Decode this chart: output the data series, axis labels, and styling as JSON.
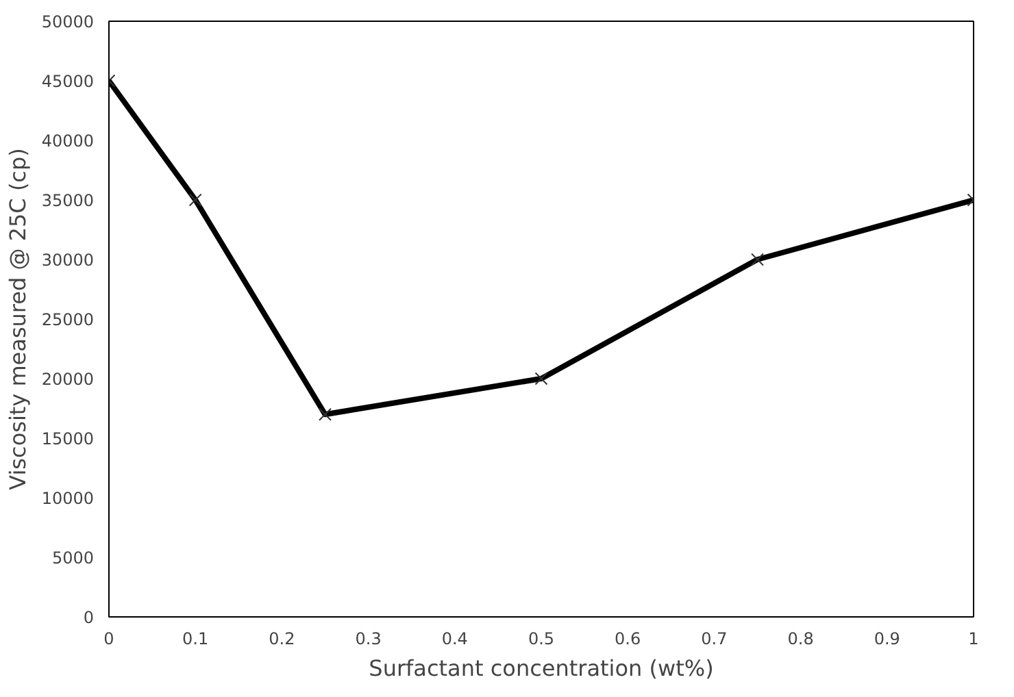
{
  "chart_data": {
    "type": "line",
    "xlabel": "Surfactant concentration (wt%)",
    "ylabel": "Viscosity measured @ 25C (cp)",
    "x": [
      0,
      0.1,
      0.25,
      0.5,
      0.75,
      1
    ],
    "series": [
      {
        "color": "#000000",
        "values": [
          45000,
          35000,
          17000,
          20000,
          30000,
          35000
        ]
      }
    ],
    "xlim": [
      0,
      1
    ],
    "xticks": [
      0,
      0.1,
      0.2,
      0.3,
      0.4,
      0.5,
      0.6,
      0.7,
      0.8,
      0.9,
      1
    ],
    "ylim": [
      0,
      50000
    ],
    "yticks": [
      0,
      5000,
      10000,
      15000,
      20000,
      25000,
      30000,
      35000,
      40000,
      45000,
      50000
    ],
    "marker": "cross",
    "line_style": "solid"
  }
}
